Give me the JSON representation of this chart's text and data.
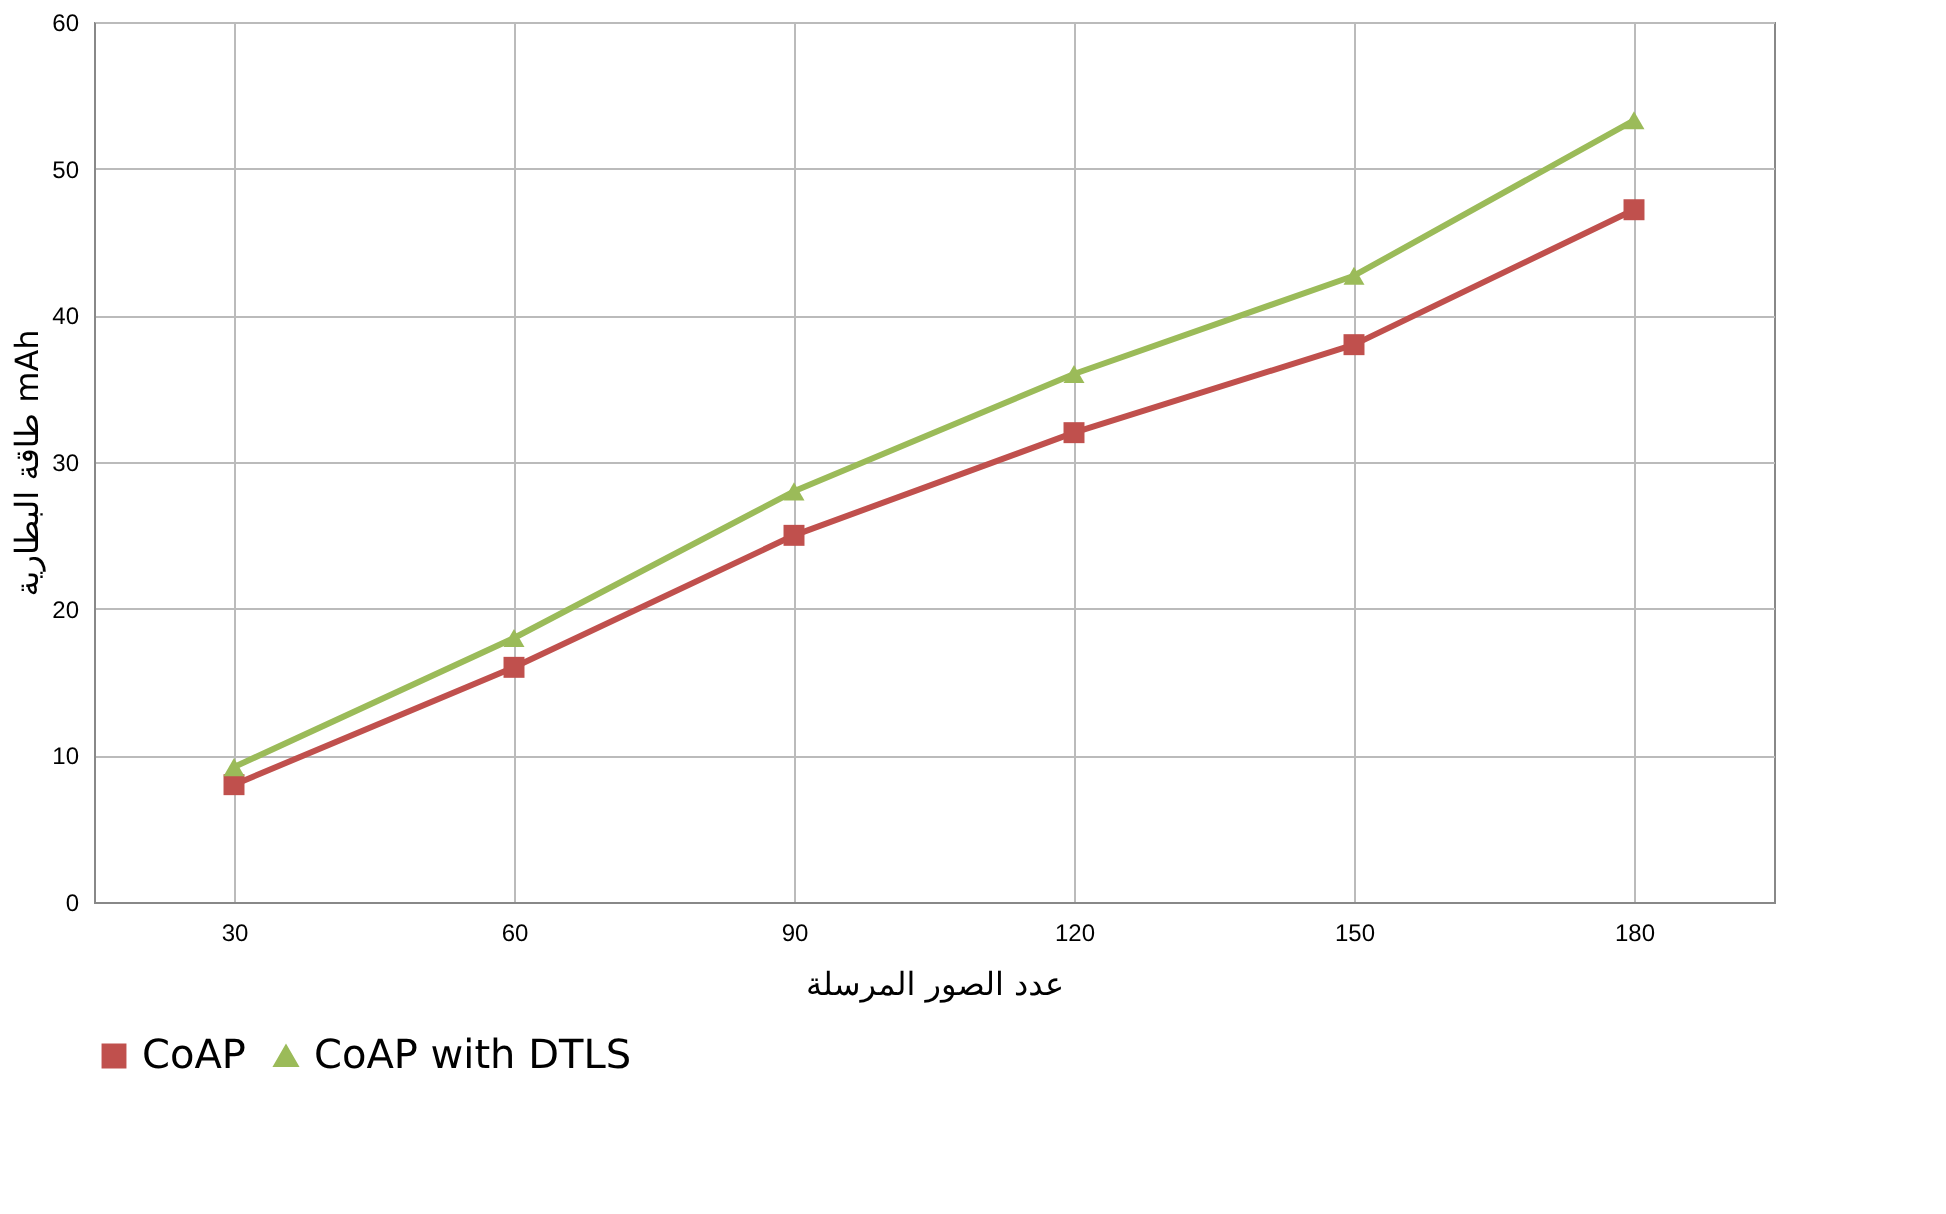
{
  "chart_data": {
    "type": "line",
    "xlabel": "عدد الصور المرسلة",
    "ylabel": "طاقة البطارية mAh",
    "categories": [
      "30",
      "60",
      "90",
      "120",
      "150",
      "180"
    ],
    "series": [
      {
        "name": "CoAP",
        "color": "#c0504d",
        "marker": "square",
        "values": [
          8,
          16,
          25,
          32,
          38,
          47.2
        ]
      },
      {
        "name": "CoAP with DTLS",
        "color": "#9bbb59",
        "marker": "triangle",
        "values": [
          9.2,
          18,
          28,
          36,
          42.7,
          53.3
        ]
      }
    ],
    "ylim": [
      0,
      60
    ],
    "yticks": [
      0,
      10,
      20,
      30,
      40,
      50,
      60
    ],
    "grid": true,
    "legend": "bottom",
    "line_style": "solid"
  }
}
